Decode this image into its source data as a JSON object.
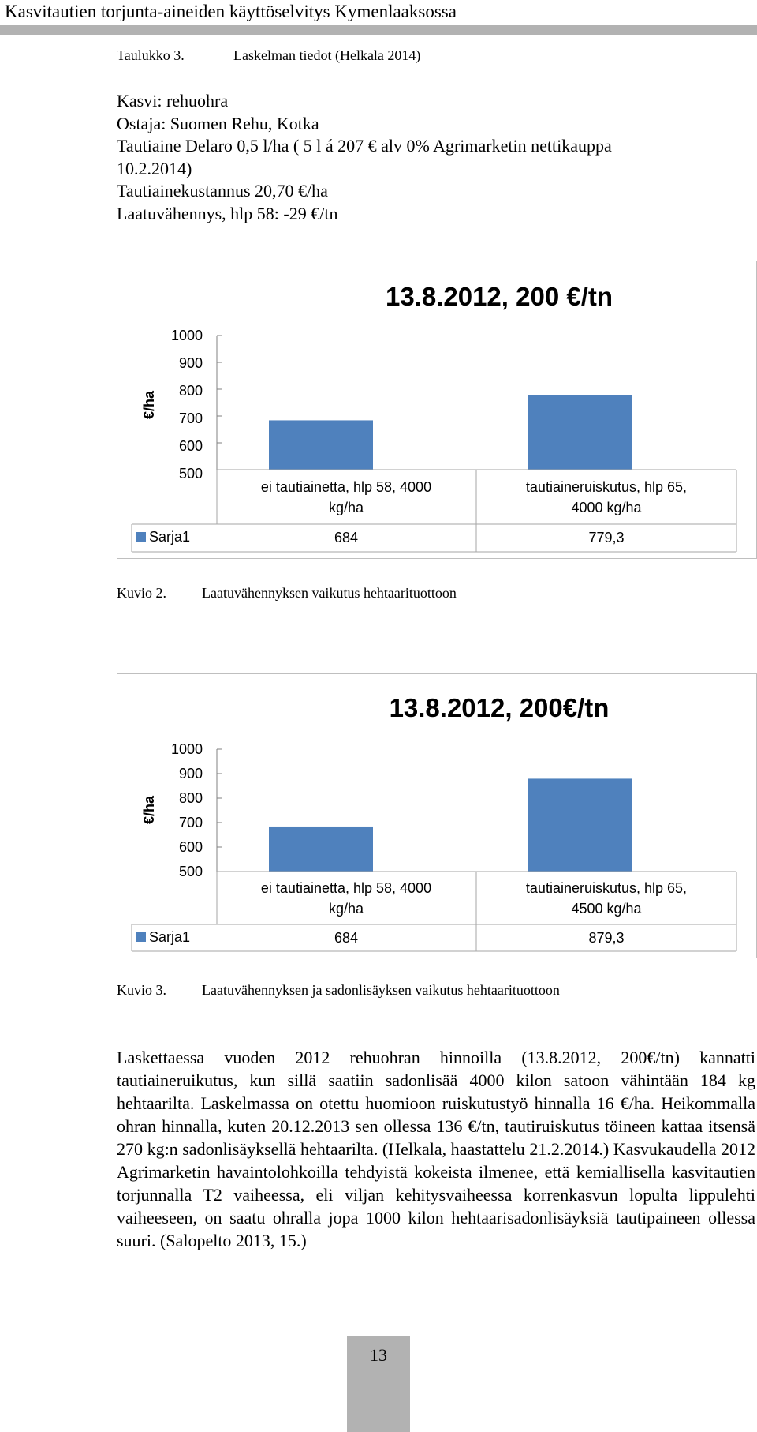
{
  "header": {
    "title": "Kasvitautien torjunta-aineiden käyttöselvitys Kymenlaaksossa"
  },
  "table_caption": {
    "number": "Taulukko 3.",
    "text": "Laskelman tiedot (Helkala 2014)"
  },
  "info_lines": [
    "Kasvi: rehuohra",
    "Ostaja: Suomen Rehu, Kotka",
    "Tautiaine Delaro 0,5 l/ha ( 5 l á 207 € alv 0% Agrimarketin nettikauppa",
    "10.2.2014)",
    "Tautiainekustannus 20,70 €/ha",
    "Laatuvähennys, hlp 58: -29 €/tn"
  ],
  "chart_data": [
    {
      "type": "bar",
      "title": "13.8.2012, 200 €/tn",
      "ylabel": "€/ha",
      "ylim": [
        500,
        1000
      ],
      "yticks": [
        "1000",
        "900",
        "800",
        "700",
        "600",
        "500"
      ],
      "categories": [
        [
          "ei tautiainetta, hlp 58, 4000",
          "kg/ha"
        ],
        [
          "tautiaineruiskutus, hlp 65,",
          "4000 kg/ha"
        ]
      ],
      "series": [
        {
          "name": "Sarja1",
          "values": [
            684,
            779.3
          ],
          "labels": [
            "684",
            "779,3"
          ]
        }
      ],
      "color": "#4f81bd",
      "legend": "data-table-left",
      "grid": false
    },
    {
      "type": "bar",
      "title": "13.8.2012, 200€/tn",
      "ylabel": "€/ha",
      "ylim": [
        500,
        1000
      ],
      "yticks": [
        "1000",
        "900",
        "800",
        "700",
        "600",
        "500"
      ],
      "categories": [
        [
          "ei tautiainetta, hlp 58, 4000",
          "kg/ha"
        ],
        [
          "tautiaineruiskutus, hlp 65,",
          "4500 kg/ha"
        ]
      ],
      "series": [
        {
          "name": "Sarja1",
          "values": [
            684,
            879.3
          ],
          "labels": [
            "684",
            "879,3"
          ]
        }
      ],
      "color": "#4f81bd",
      "legend": "data-table-left",
      "grid": false
    }
  ],
  "figures": [
    {
      "number": "Kuvio 2.",
      "caption": "Laatuvähennyksen vaikutus hehtaarituottoon"
    },
    {
      "number": "Kuvio 3.",
      "caption": "Laatuvähennyksen ja sadonlisäyksen vaikutus hehtaarituottoon"
    }
  ],
  "paragraph": "Laskettaessa vuoden 2012 rehuohran hinnoilla (13.8.2012, 200€/tn) kannatti tautiaineruikutus, kun sillä saatiin sadonlisää 4000 kilon satoon vähintään 184 kg hehtaarilta. Laskelmassa on otettu huomioon ruiskutustyö hinnalla 16 €/ha. Heikommalla ohran hinnalla, kuten 20.12.2013 sen ollessa 136 €/tn, tautiruiskutus töineen kattaa itsensä 270 kg:n sadonlisäyksellä hehtaarilta. (Helkala, haastattelu 21.2.2014.) Kasvukaudella 2012 Agrimarketin havaintolohkoilla tehdyistä kokeista ilmenee, että kemiallisella kasvitautien torjunnalla T2 vaiheessa, eli viljan kehitysvaiheessa korrenkasvun lopulta lippulehti vaiheeseen, on saatu ohralla jopa 1000 kilon hehtaarisadonlisäyksiä tautipaineen ollessa suuri. (Salopelto 2013, 15.)",
  "page_number": "13"
}
